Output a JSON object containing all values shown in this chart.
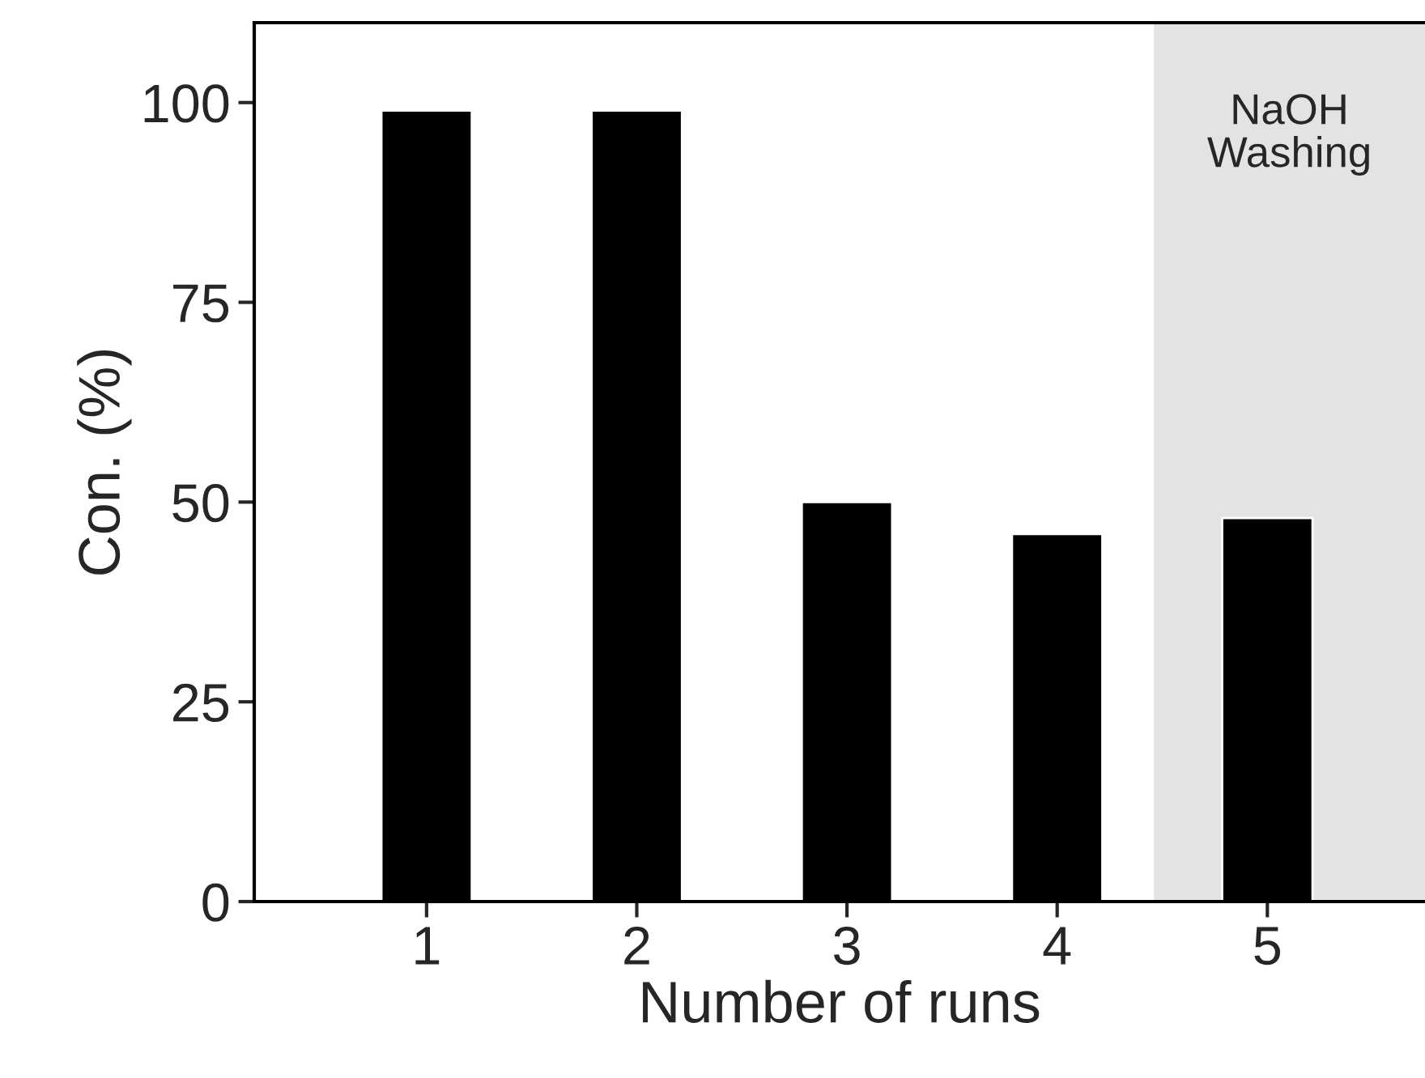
{
  "chart_data": {
    "type": "bar",
    "xlabel": "Number of runs",
    "ylabel": "Con. (%)",
    "x": [
      1,
      2,
      3,
      4,
      5
    ],
    "values": [
      99,
      99,
      50,
      46,
      48
    ],
    "color": "#000000",
    "xlim": [
      0.18,
      5.75
    ],
    "xticks": [
      1,
      2,
      3,
      4,
      5
    ],
    "ylim": [
      0,
      110
    ],
    "yticks": [
      0,
      25,
      50,
      75,
      100
    ],
    "bands": [
      {
        "axis": "x",
        "from": 4.46,
        "to": 5.75,
        "label": "NaOH\nWashing",
        "color": "#e3e3e3"
      }
    ],
    "grid": false
  }
}
